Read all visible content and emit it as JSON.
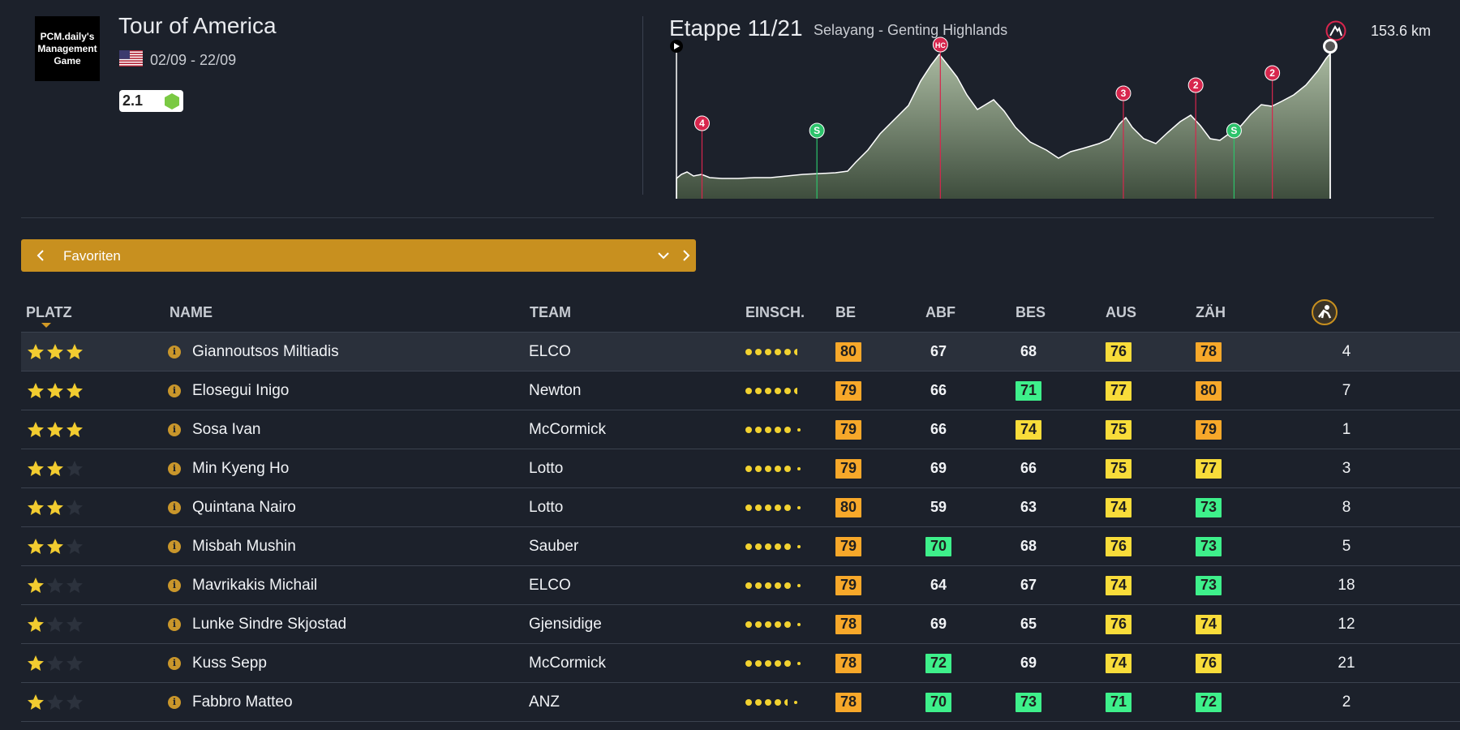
{
  "race": {
    "logo_text": "PCM.daily's Management Game",
    "title": "Tour of America",
    "dates": "02/09 - 22/09",
    "category": "2.1",
    "flag_icon": "us-flag-icon",
    "category_color": "#7ac943"
  },
  "stage": {
    "title": "Etappe 11/21",
    "route": "Selayang - Genting Highlands",
    "distance": "153.6 km",
    "type_icon": "mountain-finish-icon",
    "markers": [
      {
        "label": "4",
        "kind": "climb",
        "km": 6
      },
      {
        "label": "S",
        "kind": "sprint",
        "km": 33
      },
      {
        "label": "HC",
        "kind": "climb",
        "km": 62
      },
      {
        "label": "3",
        "kind": "climb",
        "km": 105
      },
      {
        "label": "2",
        "kind": "climb",
        "km": 122
      },
      {
        "label": "S",
        "kind": "sprint",
        "km": 131
      },
      {
        "label": "2",
        "kind": "climb",
        "km": 140
      }
    ]
  },
  "selector": {
    "label": "Favoriten",
    "prev_icon": "chevron-left-icon",
    "next_icon": "chevron-right-icon",
    "dropdown_icon": "chevron-down-icon"
  },
  "table": {
    "headers": {
      "platz": "PLATZ",
      "name": "NAME",
      "team": "TEAM",
      "einsch": "EINSCH.",
      "be": "BE",
      "abf": "ABF",
      "bes": "BES",
      "aus": "AUS",
      "zah": "ZÄH",
      "rank_icon": "rider-helmet-icon"
    },
    "colors": {
      "orange": "#f7a82a",
      "yellow": "#f8dc3a",
      "green": "#3ef08b",
      "plain": "transparent"
    },
    "rows": [
      {
        "stars": 3,
        "name": "Giannoutsos Miltiadis",
        "team": "ELCO",
        "form": 5.5,
        "be": {
          "v": "80",
          "c": "orange"
        },
        "abf": {
          "v": "67",
          "c": "plain"
        },
        "bes": {
          "v": "68",
          "c": "plain"
        },
        "aus": {
          "v": "76",
          "c": "yellow"
        },
        "zah": {
          "v": "78",
          "c": "orange"
        },
        "rank": "4"
      },
      {
        "stars": 3,
        "name": "Elosegui Inigo",
        "team": "Newton",
        "form": 5.5,
        "be": {
          "v": "79",
          "c": "orange"
        },
        "abf": {
          "v": "66",
          "c": "plain"
        },
        "bes": {
          "v": "71",
          "c": "green"
        },
        "aus": {
          "v": "77",
          "c": "yellow"
        },
        "zah": {
          "v": "80",
          "c": "orange"
        },
        "rank": "7"
      },
      {
        "stars": 3,
        "name": "Sosa Ivan",
        "team": "McCormick",
        "form": 5,
        "be": {
          "v": "79",
          "c": "orange"
        },
        "abf": {
          "v": "66",
          "c": "plain"
        },
        "bes": {
          "v": "74",
          "c": "yellow"
        },
        "aus": {
          "v": "75",
          "c": "yellow"
        },
        "zah": {
          "v": "79",
          "c": "orange"
        },
        "rank": "1"
      },
      {
        "stars": 2,
        "name": "Min Kyeng Ho",
        "team": "Lotto",
        "form": 5,
        "be": {
          "v": "79",
          "c": "orange"
        },
        "abf": {
          "v": "69",
          "c": "plain"
        },
        "bes": {
          "v": "66",
          "c": "plain"
        },
        "aus": {
          "v": "75",
          "c": "yellow"
        },
        "zah": {
          "v": "77",
          "c": "yellow"
        },
        "rank": "3"
      },
      {
        "stars": 2,
        "name": "Quintana Nairo",
        "team": "Lotto",
        "form": 5,
        "be": {
          "v": "80",
          "c": "orange"
        },
        "abf": {
          "v": "59",
          "c": "plain"
        },
        "bes": {
          "v": "63",
          "c": "plain"
        },
        "aus": {
          "v": "74",
          "c": "yellow"
        },
        "zah": {
          "v": "73",
          "c": "green"
        },
        "rank": "8"
      },
      {
        "stars": 2,
        "name": "Misbah Mushin",
        "team": "Sauber",
        "form": 5,
        "be": {
          "v": "79",
          "c": "orange"
        },
        "abf": {
          "v": "70",
          "c": "green"
        },
        "bes": {
          "v": "68",
          "c": "plain"
        },
        "aus": {
          "v": "76",
          "c": "yellow"
        },
        "zah": {
          "v": "73",
          "c": "green"
        },
        "rank": "5"
      },
      {
        "stars": 1,
        "name": "Mavrikakis Michail",
        "team": "ELCO",
        "form": 5,
        "be": {
          "v": "79",
          "c": "orange"
        },
        "abf": {
          "v": "64",
          "c": "plain"
        },
        "bes": {
          "v": "67",
          "c": "plain"
        },
        "aus": {
          "v": "74",
          "c": "yellow"
        },
        "zah": {
          "v": "73",
          "c": "green"
        },
        "rank": "18"
      },
      {
        "stars": 1,
        "name": "Lunke Sindre Skjostad",
        "team": "Gjensidige",
        "form": 5,
        "be": {
          "v": "78",
          "c": "orange"
        },
        "abf": {
          "v": "69",
          "c": "plain"
        },
        "bes": {
          "v": "65",
          "c": "plain"
        },
        "aus": {
          "v": "76",
          "c": "yellow"
        },
        "zah": {
          "v": "74",
          "c": "yellow"
        },
        "rank": "12"
      },
      {
        "stars": 1,
        "name": "Kuss Sepp",
        "team": "McCormick",
        "form": 5,
        "be": {
          "v": "78",
          "c": "orange"
        },
        "abf": {
          "v": "72",
          "c": "green"
        },
        "bes": {
          "v": "69",
          "c": "plain"
        },
        "aus": {
          "v": "74",
          "c": "yellow"
        },
        "zah": {
          "v": "76",
          "c": "yellow"
        },
        "rank": "21"
      },
      {
        "stars": 1,
        "name": "Fabbro Matteo",
        "team": "ANZ",
        "form": 4.5,
        "be": {
          "v": "78",
          "c": "orange"
        },
        "abf": {
          "v": "70",
          "c": "green"
        },
        "bes": {
          "v": "73",
          "c": "green"
        },
        "aus": {
          "v": "71",
          "c": "green"
        },
        "zah": {
          "v": "72",
          "c": "green"
        },
        "rank": "2"
      }
    ]
  }
}
